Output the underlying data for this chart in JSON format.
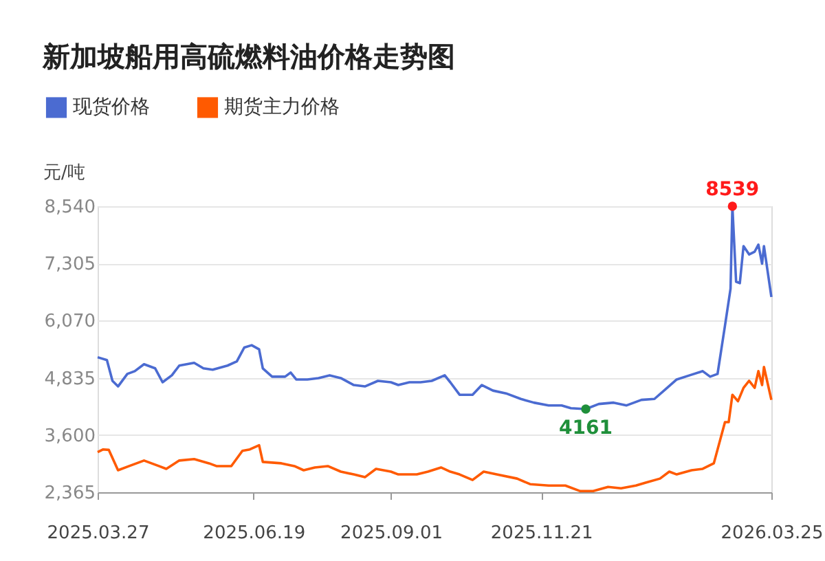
{
  "chart_data": {
    "type": "line",
    "title": "新加坡船用高硫燃料油价格走势图",
    "ylabel": "元/吨",
    "xlim": [
      "2025-03-27",
      "2026-03-25"
    ],
    "xticks": [
      {
        "value": "2025-03-27",
        "label": "2025.03.27"
      },
      {
        "value": "2025-06-19",
        "label": "2025.06.19"
      },
      {
        "value": "2025-09-01",
        "label": "2025.09.01"
      },
      {
        "value": "2025-11-21",
        "label": "2025.11.21"
      },
      {
        "value": "2026-03-25",
        "label": "2026.03.25"
      }
    ],
    "ylim": [
      2365,
      8540
    ],
    "yticks": [
      {
        "value": 2365,
        "label": "2,365"
      },
      {
        "value": 3600,
        "label": "3,600"
      },
      {
        "value": 4835,
        "label": "4,835"
      },
      {
        "value": 6070,
        "label": "6,070"
      },
      {
        "value": 7305,
        "label": "7,305"
      },
      {
        "value": 8540,
        "label": "8,540"
      }
    ],
    "grid": "y",
    "legend": "top left",
    "marker": "none",
    "line_style": "solid",
    "series": [
      {
        "name": "现货价格",
        "color": "#4b6bd1",
        "x": [
          "2025-03-27",
          "2025-04-01",
          "2025-04-04",
          "2025-04-07",
          "2025-04-12",
          "2025-04-16",
          "2025-04-21",
          "2025-04-27",
          "2025-05-01",
          "2025-05-06",
          "2025-05-10",
          "2025-05-18",
          "2025-05-23",
          "2025-05-28",
          "2025-06-05",
          "2025-06-10",
          "2025-06-14",
          "2025-06-18",
          "2025-06-22",
          "2025-06-24",
          "2025-06-29",
          "2025-07-06",
          "2025-07-09",
          "2025-07-12",
          "2025-07-18",
          "2025-07-24",
          "2025-07-30",
          "2025-08-05",
          "2025-08-12",
          "2025-08-18",
          "2025-08-25",
          "2025-09-01",
          "2025-09-05",
          "2025-09-11",
          "2025-09-17",
          "2025-09-23",
          "2025-09-30",
          "2025-10-03",
          "2025-10-08",
          "2025-10-15",
          "2025-10-20",
          "2025-10-26",
          "2025-11-02",
          "2025-11-10",
          "2025-11-17",
          "2025-11-25",
          "2025-12-02",
          "2025-12-07",
          "2025-12-15",
          "2025-12-22",
          "2025-12-30",
          "2026-01-06",
          "2026-01-14",
          "2026-01-21",
          "2026-01-27",
          "2026-02-02",
          "2026-02-09",
          "2026-02-16",
          "2026-02-20",
          "2026-02-24",
          "2026-02-28",
          "2026-03-03",
          "2026-03-04",
          "2026-03-06",
          "2026-03-08",
          "2026-03-10",
          "2026-03-13",
          "2026-03-16",
          "2026-03-18",
          "2026-03-20",
          "2026-03-21",
          "2026-03-25"
        ],
        "values": [
          5280,
          5220,
          4770,
          4650,
          4920,
          4980,
          5130,
          5040,
          4740,
          4890,
          5100,
          5160,
          5040,
          5010,
          5100,
          5190,
          5490,
          5540,
          5450,
          5040,
          4860,
          4860,
          4950,
          4800,
          4800,
          4830,
          4890,
          4830,
          4680,
          4650,
          4770,
          4740,
          4680,
          4740,
          4740,
          4770,
          4890,
          4740,
          4470,
          4470,
          4680,
          4560,
          4500,
          4380,
          4300,
          4240,
          4240,
          4180,
          4161,
          4270,
          4300,
          4240,
          4360,
          4380,
          4590,
          4800,
          4890,
          4980,
          4860,
          4920,
          5960,
          6760,
          8539,
          6910,
          6880,
          7680,
          7500,
          7560,
          7710,
          7300,
          7680,
          6580
        ]
      },
      {
        "name": "期货主力价格",
        "color": "#ff5a00",
        "x": [
          "2025-03-27",
          "2025-03-30",
          "2025-04-02",
          "2025-04-07",
          "2025-04-13",
          "2025-04-21",
          "2025-04-29",
          "2025-05-03",
          "2025-05-10",
          "2025-05-18",
          "2025-05-26",
          "2025-05-30",
          "2025-06-07",
          "2025-06-13",
          "2025-06-17",
          "2025-06-22",
          "2025-06-24",
          "2025-07-04",
          "2025-07-11",
          "2025-07-16",
          "2025-07-22",
          "2025-07-29",
          "2025-08-05",
          "2025-08-12",
          "2025-08-18",
          "2025-08-24",
          "2025-09-01",
          "2025-09-05",
          "2025-09-15",
          "2025-09-21",
          "2025-09-28",
          "2025-10-03",
          "2025-10-08",
          "2025-10-15",
          "2025-10-21",
          "2025-10-28",
          "2025-11-08",
          "2025-11-15",
          "2025-11-25",
          "2025-12-04",
          "2025-12-12",
          "2025-12-19",
          "2025-12-27",
          "2026-01-03",
          "2026-01-11",
          "2026-01-16",
          "2026-01-24",
          "2026-01-29",
          "2026-02-02",
          "2026-02-10",
          "2026-02-16",
          "2026-02-22",
          "2026-02-28",
          "2026-03-02",
          "2026-03-04",
          "2026-03-07",
          "2026-03-10",
          "2026-03-13",
          "2026-03-16",
          "2026-03-18",
          "2026-03-20",
          "2026-03-21",
          "2026-03-25"
        ],
        "values": [
          3230,
          3290,
          3280,
          2840,
          2930,
          3050,
          2930,
          2870,
          3050,
          3080,
          2990,
          2930,
          2930,
          3260,
          3290,
          3380,
          3020,
          2990,
          2930,
          2840,
          2900,
          2930,
          2810,
          2750,
          2690,
          2870,
          2810,
          2750,
          2750,
          2810,
          2900,
          2810,
          2750,
          2630,
          2810,
          2750,
          2660,
          2540,
          2510,
          2510,
          2390,
          2390,
          2480,
          2450,
          2510,
          2570,
          2660,
          2810,
          2750,
          2840,
          2870,
          2990,
          3880,
          3880,
          4470,
          4330,
          4620,
          4770,
          4620,
          4980,
          4680,
          5070,
          4360
        ]
      }
    ],
    "annotations": [
      {
        "text": "8539",
        "x": "2026-03-04",
        "y": 8539
      },
      {
        "text": "4161",
        "x": "2025-12-15",
        "y": 4161
      }
    ]
  }
}
